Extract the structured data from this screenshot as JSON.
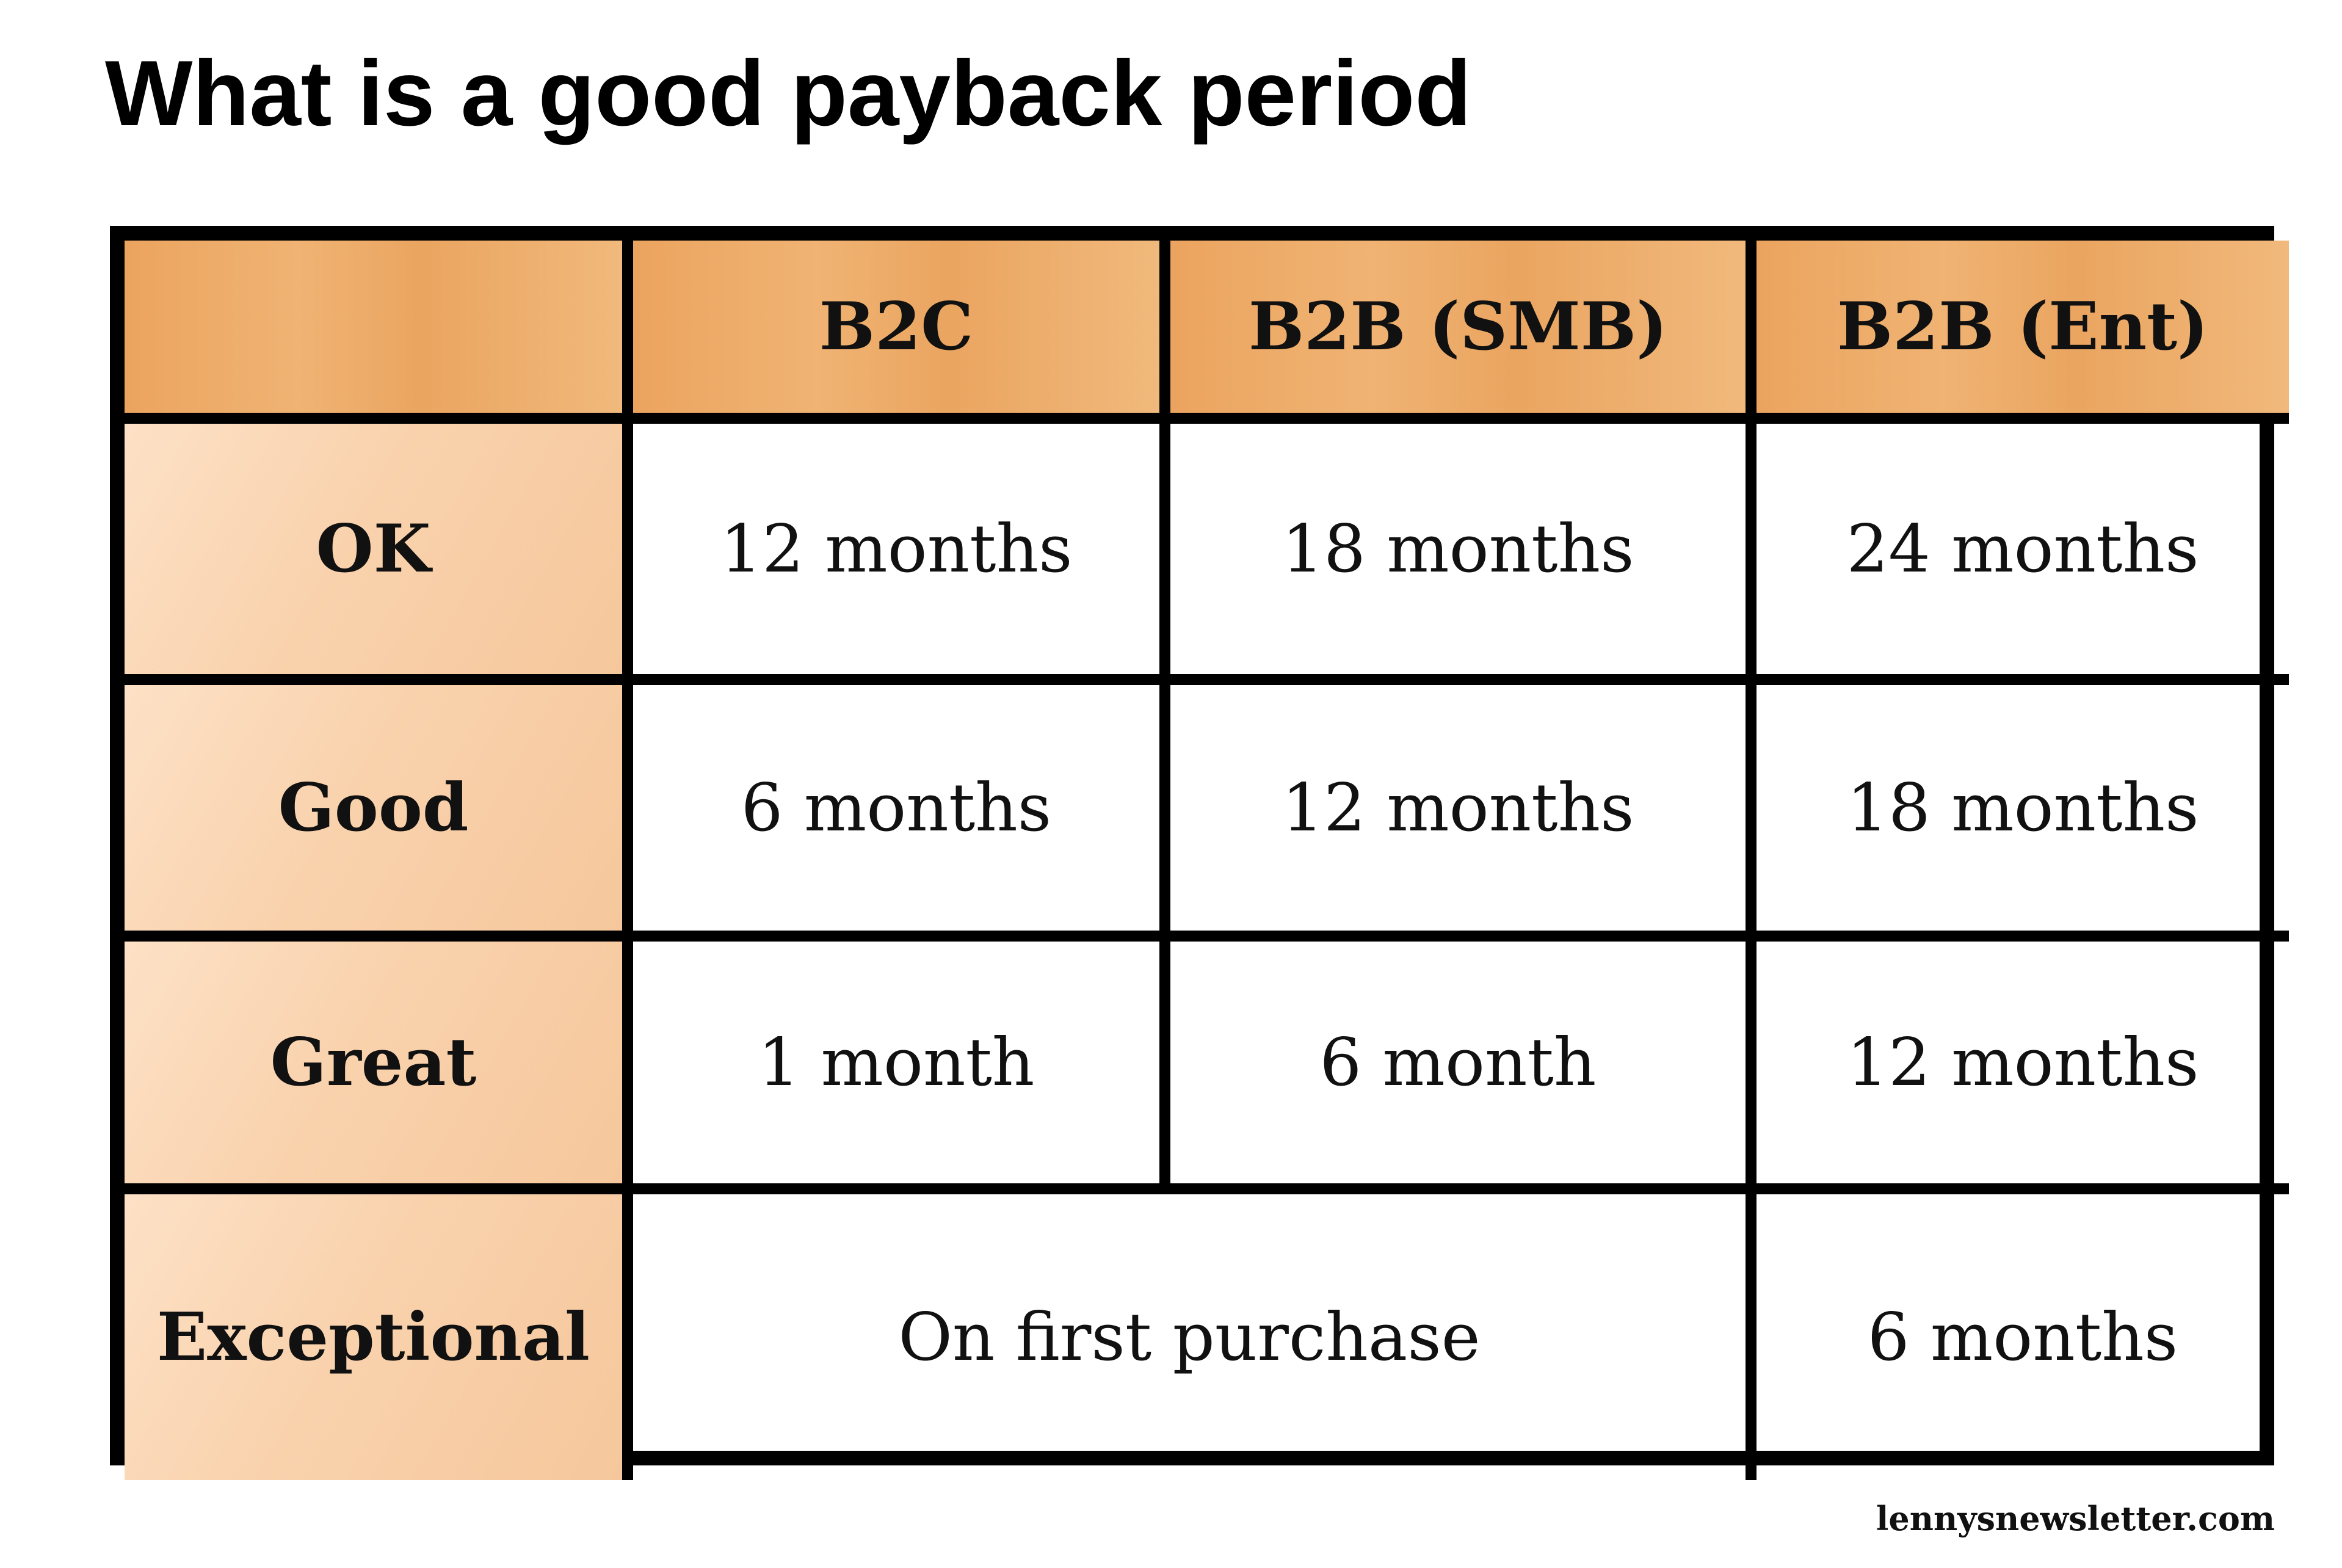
{
  "chart_data": {
    "type": "table",
    "title": "What is a good payback period",
    "columns": [
      "",
      "B2C",
      "B2B (SMB)",
      "B2B (Ent)"
    ],
    "rows": [
      {
        "label": "OK",
        "values": [
          "12 months",
          "18 months",
          "24 months"
        ]
      },
      {
        "label": "Good",
        "values": [
          "6 months",
          "12 months",
          "18 months"
        ]
      },
      {
        "label": "Great",
        "values": [
          "1 month",
          "6 month",
          "12 months"
        ]
      },
      {
        "label": "Exceptional",
        "merged": "On first purchase",
        "last": "6 months"
      }
    ],
    "colors": {
      "header": "#eda863",
      "row_header": "#fad5b2",
      "border": "#000000"
    }
  },
  "footer": {
    "source": "lennysnewsletter.com"
  }
}
